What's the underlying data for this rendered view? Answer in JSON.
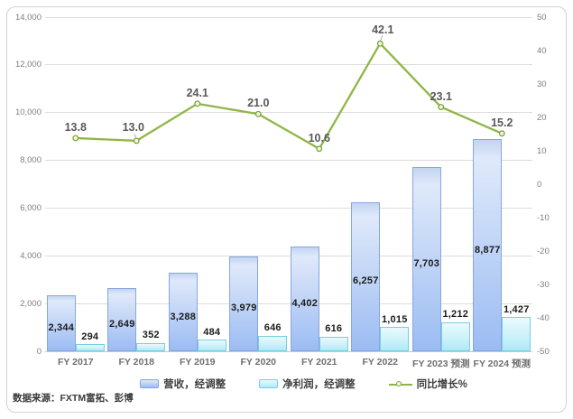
{
  "source_note": "数据来源：FXTM富拓、彭博",
  "chart_data": {
    "type": "bar",
    "subtype": "combo-bar-line-dual-axis",
    "categories": [
      "FY 2017",
      "FY 2018",
      "FY 2019",
      "FY 2020",
      "FY 2021",
      "FY 2022",
      "FY 2023 预测",
      "FY 2024 预测"
    ],
    "series": [
      {
        "name": "营收，经调整",
        "type": "bar",
        "axis": "left",
        "values": [
          2344,
          2649,
          3288,
          3979,
          4402,
          6257,
          7703,
          8877
        ]
      },
      {
        "name": "净利润，经调整",
        "type": "bar",
        "axis": "left",
        "values": [
          294,
          352,
          484,
          646,
          616,
          1015,
          1212,
          1427
        ]
      },
      {
        "name": "同比增长%",
        "type": "line",
        "axis": "right",
        "values": [
          13.8,
          13.0,
          24.1,
          21.0,
          10.6,
          42.1,
          23.1,
          15.2
        ]
      }
    ],
    "left_axis": {
      "min": 0,
      "max": 14000,
      "step": 2000,
      "tick_labels": [
        "14,000",
        "12,000",
        "10,000",
        "8,000",
        "6,000",
        "4,000",
        "2,000",
        "0"
      ]
    },
    "right_axis": {
      "min": -50,
      "max": 50,
      "step": 10,
      "tick_labels": [
        "50",
        "40",
        "30",
        "20",
        "10",
        "0",
        "-10",
        "-20",
        "-30",
        "-40",
        "-50"
      ]
    },
    "grid": true,
    "legend_position": "bottom",
    "title": ""
  },
  "colors": {
    "revenue_bar_top": "#dfe9fb",
    "revenue_bar_bottom": "#9bbcf3",
    "revenue_bar_border": "#86a7dd",
    "profit_bar_top": "#e8fafd",
    "profit_bar_bottom": "#aeeaf8",
    "profit_bar_border": "#79cfe2",
    "growth_line": "#8fb645",
    "gridline": "#dcdcdc",
    "axis_text": "#7f7f7f"
  }
}
